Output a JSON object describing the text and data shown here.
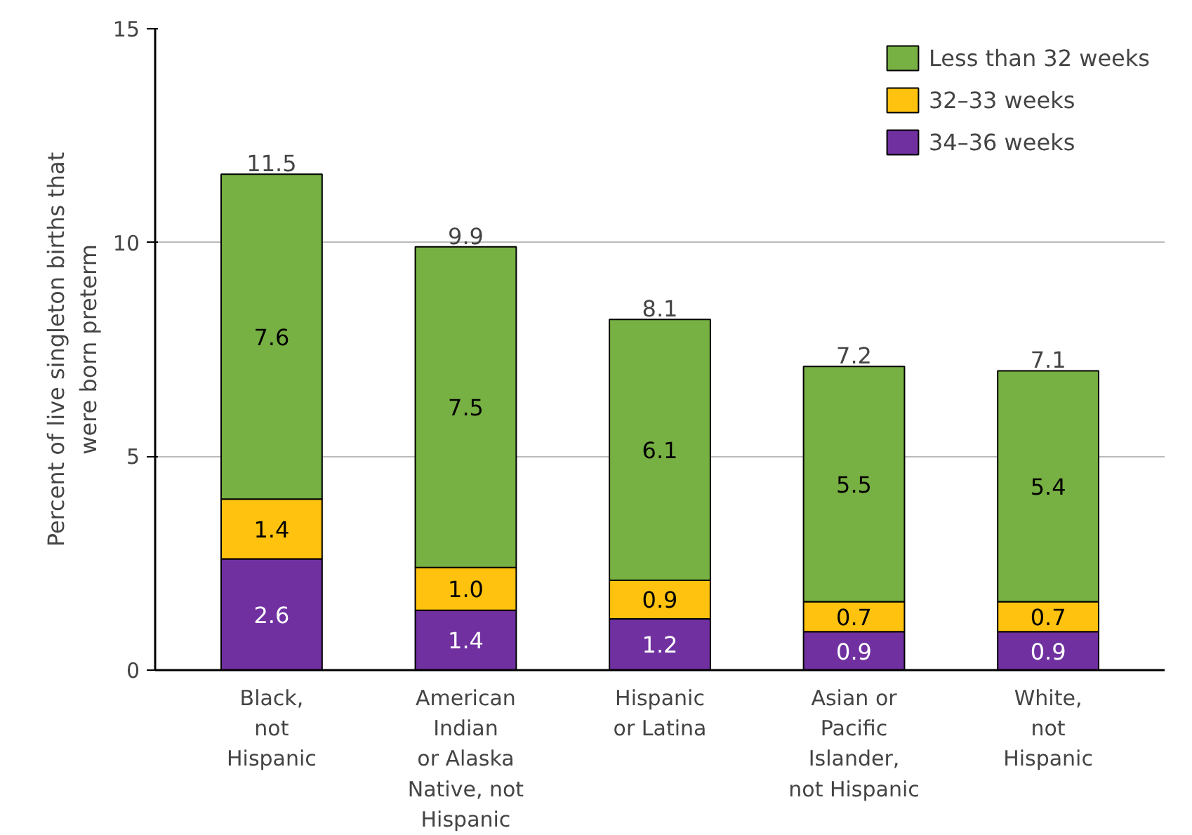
{
  "chart_data": {
    "type": "bar",
    "stacked": true,
    "ylabel": "Percent of live singleton births that were born preterm",
    "categories": [
      "Black,\nnot\nHispanic",
      "American\nIndian\nor Alaska\nNative, not\nHispanic",
      "Hispanic\nor Latina",
      "Asian or\nPacific\nIslander,\nnot Hispanic",
      "White,\nnot\nHispanic"
    ],
    "series": [
      {
        "name": "34–36 weeks",
        "color": "#7030a0",
        "values": [
          2.6,
          1.4,
          1.2,
          0.9,
          0.9
        ],
        "value_labels": [
          "2.6",
          "1.4",
          "1.2",
          "0.9",
          "0.9"
        ]
      },
      {
        "name": "32–33 weeks",
        "color": "#ffc20e",
        "values": [
          1.4,
          1.0,
          0.9,
          0.7,
          0.7
        ],
        "value_labels": [
          "1.4",
          "1.0",
          "0.9",
          "0.7",
          "0.7"
        ]
      },
      {
        "name": "Less than 32 weeks",
        "color": "#77b043",
        "values": [
          7.6,
          7.5,
          6.1,
          5.5,
          5.4
        ],
        "value_labels": [
          "7.6",
          "7.5",
          "6.1",
          "5.5",
          "5.4"
        ]
      }
    ],
    "totals": [
      "11.5",
      "9.9",
      "8.1",
      "7.2",
      "7.1"
    ],
    "ylim": [
      0,
      15
    ],
    "yticks": [
      0,
      5,
      10,
      15
    ],
    "grid": "y",
    "legend": "top right"
  }
}
